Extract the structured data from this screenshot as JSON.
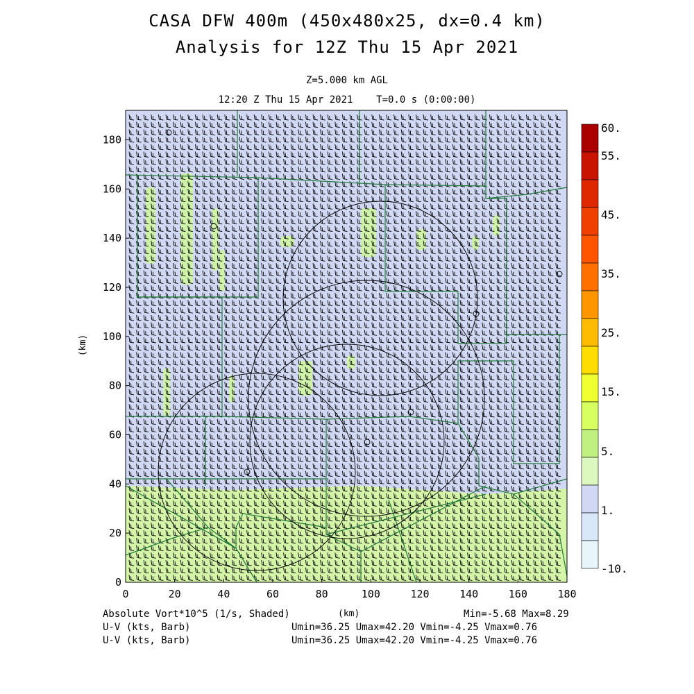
{
  "header": {
    "title_line1": "CASA DFW 400m (450x480x25, dx=0.4 km)",
    "title_line2": "Analysis for 12Z Thu 15 Apr 2021",
    "level": "Z=5.000 km AGL",
    "time": "12:20 Z Thu 15 Apr 2021    T=0.0 s (0:00:00)"
  },
  "axes": {
    "x_ticks": [
      "0",
      "20",
      "40",
      "60",
      "80",
      "100",
      "120",
      "140",
      "160",
      "180"
    ],
    "y_ticks": [
      "0",
      "20",
      "40",
      "60",
      "80",
      "100",
      "120",
      "140",
      "160",
      "180"
    ],
    "y_label": "(km)",
    "x_label": "(km)",
    "x_range": [
      0,
      180
    ],
    "y_range": [
      0,
      192
    ]
  },
  "colorbar": {
    "labels": [
      "60.",
      "55.",
      "45.",
      "35.",
      "25.",
      "15.",
      "5.",
      "1.",
      "-10."
    ],
    "colors": [
      "#aa0000",
      "#c81400",
      "#e02800",
      "#f04000",
      "#ff5500",
      "#ff7000",
      "#ff9600",
      "#ffbb00",
      "#ffdd00",
      "#f0ff30",
      "#d8ff60",
      "#c0f080",
      "#dcf8c0",
      "#d0d8f4",
      "#d8e8f8",
      "#e8f6fc"
    ]
  },
  "footer": {
    "field": "Absolute Vort*10^5 (1/s, Shaded)",
    "field_units": "(km)",
    "minmax": "Min=-5.68 Max=8.29",
    "wind1_label": "U-V (kts, Barb)",
    "wind1_stats": "Umin=36.25 Umax=42.20 Vmin=-4.25 Vmax=0.76",
    "wind2_label": "U-V (kts, Barb)",
    "wind2_stats": "Umin=36.25 Umax=42.20 Vmin=-4.25 Vmax=0.76"
  },
  "map": {
    "field_colors": {
      "background": "#d0d8f4",
      "southern_band": "#d4f4a8",
      "patch": "#ccf5a0"
    },
    "boundary_color": "#1f7a3a",
    "radar_ring_color": "#000000"
  }
}
